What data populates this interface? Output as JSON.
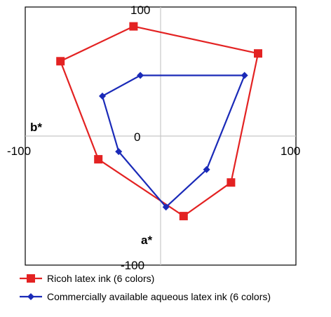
{
  "chart_data": {
    "type": "line",
    "x_axis_label": "b*",
    "y_axis_label": "a*",
    "x_range": [
      -100,
      100
    ],
    "y_range": [
      -100,
      100
    ],
    "tick_labels": {
      "x_min": "-100",
      "x_zero": "0",
      "x_max": "100",
      "y_max": "100",
      "y_min": "-100"
    },
    "grid": true,
    "legend_placement": "bottom",
    "series": [
      {
        "name": "Ricoh latex ink (6 colors)",
        "color": "#e32222",
        "marker": "square",
        "closed": true,
        "points": [
          {
            "x": -20,
            "y": 85
          },
          {
            "x": 72,
            "y": 64
          },
          {
            "x": 52,
            "y": -36
          },
          {
            "x": 17,
            "y": -62
          },
          {
            "x": -46,
            "y": -18
          },
          {
            "x": -74,
            "y": 58
          }
        ]
      },
      {
        "name": "Commercially available aqueous latex ink (6 colors)",
        "color": "#1a2ab8",
        "marker": "diamond",
        "closed": true,
        "points": [
          {
            "x": -15,
            "y": 47
          },
          {
            "x": 62,
            "y": 47
          },
          {
            "x": 34,
            "y": -26
          },
          {
            "x": 4,
            "y": -55
          },
          {
            "x": -31,
            "y": -12
          },
          {
            "x": -43,
            "y": 31
          }
        ]
      }
    ]
  }
}
